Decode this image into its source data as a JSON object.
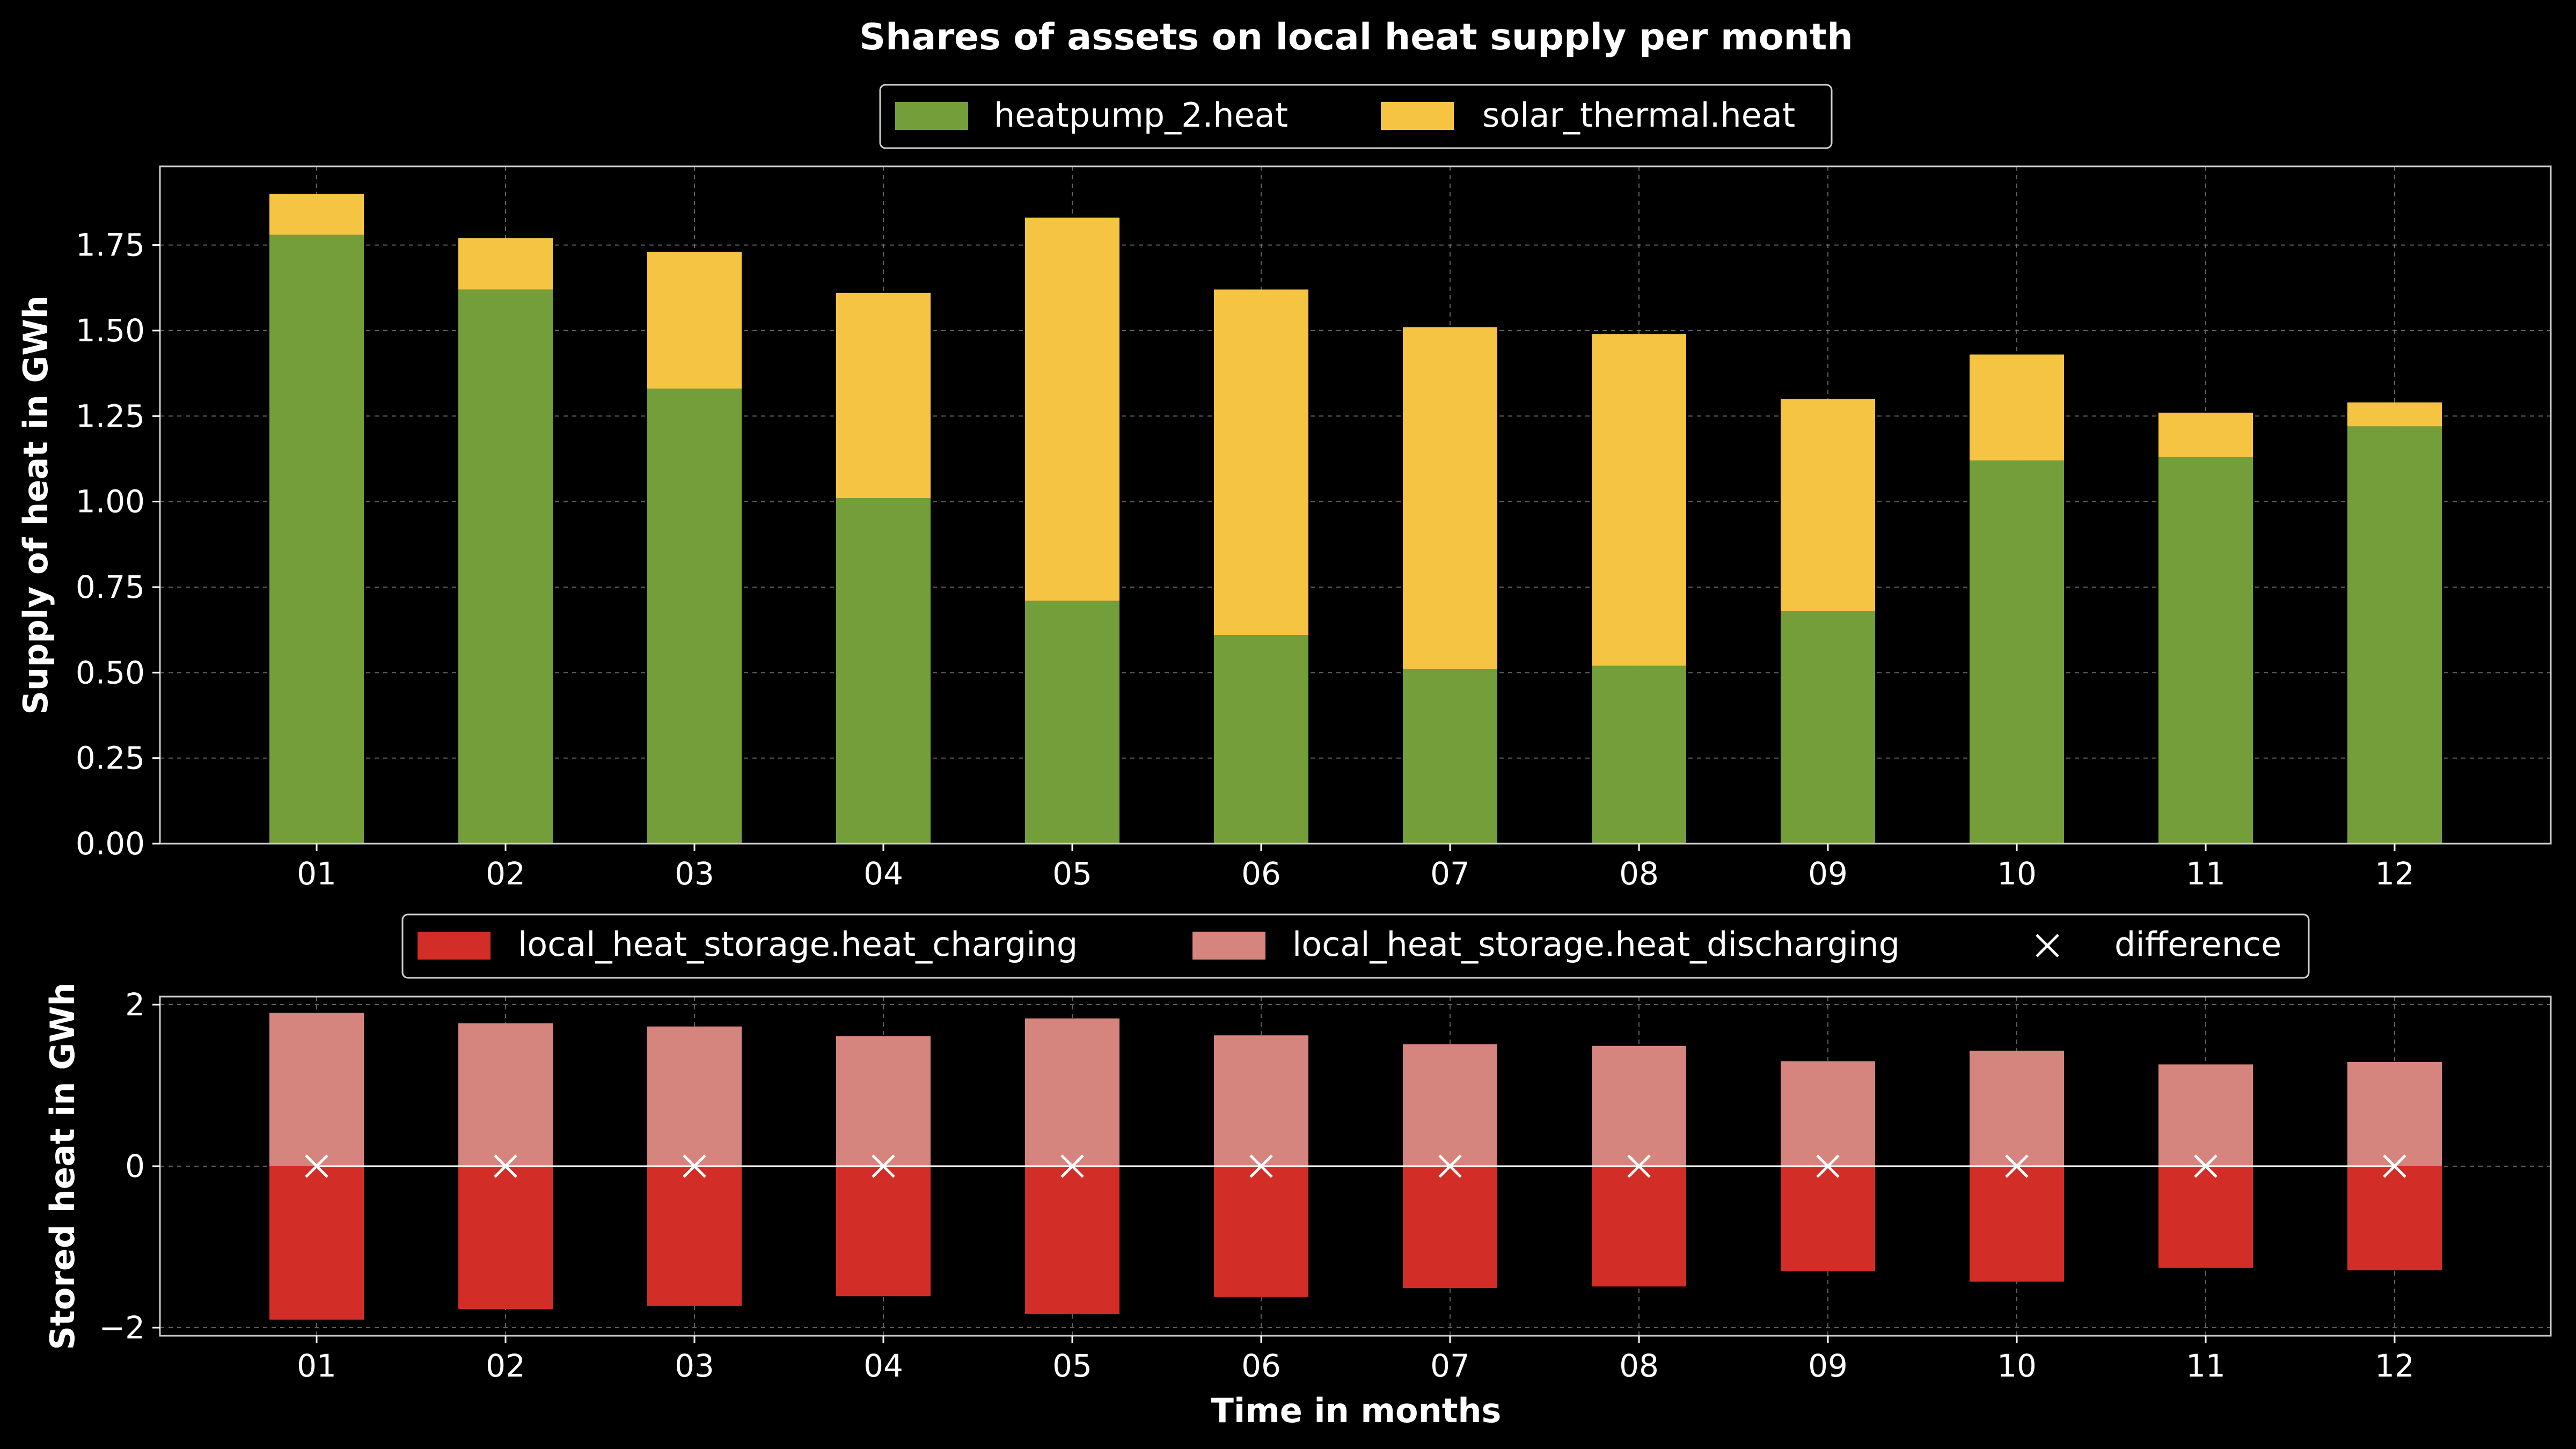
{
  "chart_data": [
    {
      "type": "bar",
      "stacked": true,
      "title": "Shares of assets on local heat supply per month",
      "xlabel": "",
      "ylabel": "Supply of heat in GWh",
      "categories": [
        "01",
        "02",
        "03",
        "04",
        "05",
        "06",
        "07",
        "08",
        "09",
        "10",
        "11",
        "12"
      ],
      "series": [
        {
          "name": "heatpump_2.heat",
          "color": "#739e3a",
          "values": [
            1.78,
            1.62,
            1.33,
            1.01,
            0.71,
            0.61,
            0.51,
            0.52,
            0.68,
            1.12,
            1.13,
            1.22
          ]
        },
        {
          "name": "solar_thermal.heat",
          "color": "#f5c443",
          "values": [
            0.12,
            0.15,
            0.4,
            0.6,
            1.12,
            1.01,
            1.0,
            0.97,
            0.62,
            0.31,
            0.13,
            0.07
          ]
        }
      ],
      "ylim": [
        0,
        1.98
      ],
      "yticks": [
        "0.00",
        "0.25",
        "0.50",
        "0.75",
        "1.00",
        "1.25",
        "1.50",
        "1.75"
      ],
      "legend": "top-center",
      "grid": true
    },
    {
      "type": "bar",
      "xlabel": "Time in months",
      "ylabel": "Stored heat in GWh",
      "categories": [
        "01",
        "02",
        "03",
        "04",
        "05",
        "06",
        "07",
        "08",
        "09",
        "10",
        "11",
        "12"
      ],
      "series": [
        {
          "name": "local_heat_storage.heat_charging",
          "color": "#d22d26",
          "values": [
            -1.9,
            -1.77,
            -1.73,
            -1.61,
            -1.83,
            -1.62,
            -1.51,
            -1.49,
            -1.3,
            -1.43,
            -1.26,
            -1.29
          ]
        },
        {
          "name": "local_heat_storage.heat_discharging",
          "color": "#d6847e",
          "values": [
            1.9,
            1.77,
            1.73,
            1.61,
            1.83,
            1.62,
            1.51,
            1.49,
            1.3,
            1.43,
            1.26,
            1.29
          ]
        },
        {
          "name": "difference",
          "marker": "x",
          "color": "#ffffff",
          "values": [
            0,
            0,
            0,
            0,
            0,
            0,
            0,
            0,
            0,
            0,
            0,
            0
          ]
        }
      ],
      "ylim": [
        -2.1,
        2.1
      ],
      "yticks": [
        "−2",
        "0",
        "2"
      ],
      "legend": "top-center",
      "grid": true
    }
  ]
}
